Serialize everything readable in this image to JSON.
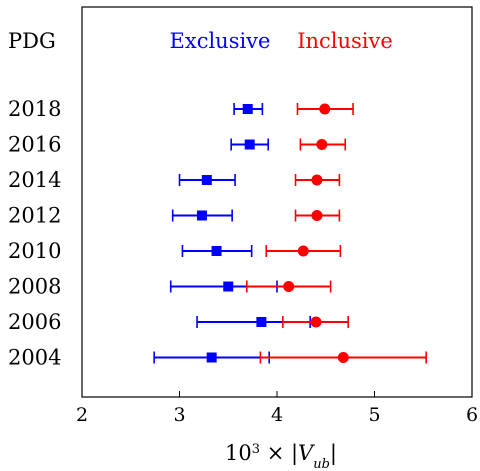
{
  "chart_data": {
    "type": "scatter",
    "header_label": "PDG",
    "xlabel_html": "10<tspan baseline-shift='super' font-size='13'>3</tspan> × |<tspan font-style='italic'>V</tspan><tspan baseline-shift='sub' font-size='13' font-style='italic'>ub</tspan>|",
    "xlim": [
      2,
      6
    ],
    "xticks": [
      "2",
      "3",
      "4",
      "5",
      "6"
    ],
    "categories": [
      "2018",
      "2016",
      "2014",
      "2012",
      "2010",
      "2008",
      "2006",
      "2004"
    ],
    "series": [
      {
        "name": "Exclusive",
        "color": "#0000ff",
        "marker": "square",
        "points": [
          {
            "year": "2018",
            "value": 3.7,
            "low": 3.56,
            "high": 3.85
          },
          {
            "year": "2016",
            "value": 3.72,
            "low": 3.53,
            "high": 3.91
          },
          {
            "year": "2014",
            "value": 3.28,
            "low": 3.0,
            "high": 3.57
          },
          {
            "year": "2012",
            "value": 3.23,
            "low": 2.93,
            "high": 3.54
          },
          {
            "year": "2010",
            "value": 3.38,
            "low": 3.03,
            "high": 3.74
          },
          {
            "year": "2008",
            "value": 3.5,
            "low": 2.91,
            "high": 4.0
          },
          {
            "year": "2006",
            "value": 3.84,
            "low": 3.18,
            "high": 4.34
          },
          {
            "year": "2004",
            "value": 3.33,
            "low": 2.74,
            "high": 3.92
          }
        ]
      },
      {
        "name": "Inclusive",
        "color": "#ff0000",
        "marker": "circle",
        "points": [
          {
            "year": "2018",
            "value": 4.49,
            "low": 4.21,
            "high": 4.78
          },
          {
            "year": "2016",
            "value": 4.46,
            "low": 4.24,
            "high": 4.7
          },
          {
            "year": "2014",
            "value": 4.41,
            "low": 4.19,
            "high": 4.64
          },
          {
            "year": "2012",
            "value": 4.41,
            "low": 4.19,
            "high": 4.64
          },
          {
            "year": "2010",
            "value": 4.27,
            "low": 3.89,
            "high": 4.65
          },
          {
            "year": "2008",
            "value": 4.12,
            "low": 3.69,
            "high": 4.55
          },
          {
            "year": "2006",
            "value": 4.4,
            "low": 4.06,
            "high": 4.73
          },
          {
            "year": "2004",
            "value": 4.68,
            "low": 3.83,
            "high": 5.53
          }
        ]
      }
    ],
    "grid": false,
    "legend_placement": "top-center"
  }
}
